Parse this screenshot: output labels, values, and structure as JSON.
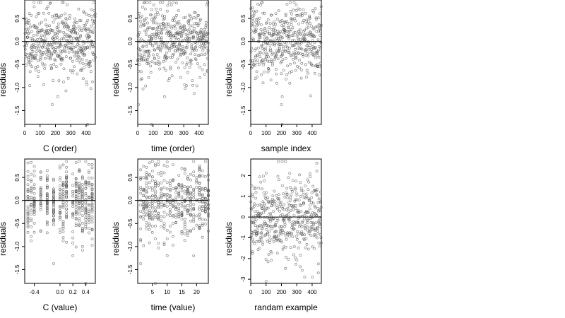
{
  "chart_data": [
    {
      "type": "scatter",
      "xlabel": "C (order)",
      "ylabel": "residuals",
      "xlim": [
        0,
        460
      ],
      "ylim": [
        -1.8,
        0.9
      ],
      "xticks": [
        0,
        100,
        200,
        300,
        400
      ],
      "xtick_labels": [
        "0",
        "100",
        "200",
        "300",
        "400"
      ],
      "yticks": [
        -1.5,
        -1.0,
        -0.5,
        0.0,
        0.5
      ],
      "ytick_labels": [
        "-1.5",
        "-1.0",
        "-0.5",
        "0.0",
        "0.5"
      ],
      "reference_line_y": 0,
      "point_style": "open circle",
      "n_points": 460,
      "x_pattern": "index",
      "y_spread": 0.38,
      "outliers": [
        [
          410,
          -1.8
        ],
        [
          180,
          -1.37
        ],
        [
          215,
          -1.2
        ]
      ],
      "seed": 11
    },
    {
      "type": "scatter",
      "xlabel": "time (order)",
      "ylabel": "residuals",
      "xlim": [
        0,
        460
      ],
      "ylim": [
        -1.8,
        0.9
      ],
      "xticks": [
        0,
        100,
        200,
        300,
        400
      ],
      "xtick_labels": [
        "0",
        "100",
        "200",
        "300",
        "400"
      ],
      "yticks": [
        -1.5,
        -1.0,
        -0.5,
        0.0,
        0.5
      ],
      "ytick_labels": [
        "-1.5",
        "-1.0",
        "-0.5",
        "0.0",
        "0.5"
      ],
      "reference_line_y": 0,
      "point_style": "open circle",
      "n_points": 460,
      "x_pattern": "index",
      "y_spread": 0.38,
      "outliers": [
        [
          90,
          -1.8
        ],
        [
          5,
          -1.37
        ],
        [
          175,
          -1.2
        ]
      ],
      "seed": 23
    },
    {
      "type": "scatter",
      "xlabel": "sample index",
      "ylabel": "residuals",
      "xlim": [
        0,
        460
      ],
      "ylim": [
        -1.8,
        0.9
      ],
      "xticks": [
        0,
        100,
        200,
        300,
        400
      ],
      "xtick_labels": [
        "0",
        "100",
        "200",
        "300",
        "400"
      ],
      "yticks": [
        -1.5,
        -1.0,
        -0.5,
        0.0,
        0.5
      ],
      "ytick_labels": [
        "-1.5",
        "-1.0",
        "-0.5",
        "0.0",
        "0.5"
      ],
      "reference_line_y": 0,
      "point_style": "open circle",
      "n_points": 460,
      "x_pattern": "index",
      "y_spread": 0.38,
      "outliers": [
        [
          205,
          -1.8
        ],
        [
          200,
          -1.37
        ],
        [
          205,
          -1.2
        ]
      ],
      "seed": 37
    },
    {
      "type": "scatter",
      "xlabel": "C (value)",
      "ylabel": "residuals",
      "xlim": [
        -0.55,
        0.55
      ],
      "ylim": [
        -1.8,
        0.9
      ],
      "xticks": [
        -0.4,
        0.0,
        0.2,
        0.4
      ],
      "xtick_labels": [
        "-0.4",
        "0.0",
        "0.2",
        "0.4"
      ],
      "yticks": [
        -1.5,
        -1.0,
        -0.5,
        0.0,
        0.5
      ],
      "ytick_labels": [
        "-1.5",
        "-1.0",
        "-0.5",
        "0.0",
        "0.5"
      ],
      "reference_line_y": 0,
      "point_style": "open circle",
      "n_points": 460,
      "x_pattern": "levels",
      "x_levels": [
        -0.5,
        -0.45,
        -0.4,
        -0.3,
        -0.2,
        -0.1,
        0.0,
        0.05,
        0.1,
        0.2,
        0.25,
        0.3,
        0.35,
        0.4,
        0.45,
        0.5
      ],
      "y_spread": 0.38,
      "outliers": [
        [
          0.4,
          -1.8
        ],
        [
          -0.1,
          -1.37
        ],
        [
          0.2,
          -1.2
        ]
      ],
      "seed": 53
    },
    {
      "type": "scatter",
      "xlabel": "time (value)",
      "ylabel": "residuals",
      "xlim": [
        0,
        24
      ],
      "ylim": [
        -1.8,
        0.9
      ],
      "xticks": [
        5,
        10,
        15,
        20
      ],
      "xtick_labels": [
        "5",
        "10",
        "15",
        "20"
      ],
      "yticks": [
        -1.5,
        -1.0,
        -0.5,
        0.0,
        0.5
      ],
      "ytick_labels": [
        "-1.5",
        "-1.0",
        "-0.5",
        "0.0",
        "0.5"
      ],
      "reference_line_y": 0,
      "point_style": "open circle",
      "n_points": 460,
      "x_pattern": "levels",
      "x_levels": [
        1,
        2,
        3,
        4,
        5,
        6,
        7,
        8,
        9,
        10,
        11,
        12,
        13,
        14,
        15,
        16,
        17,
        18,
        19,
        20,
        21,
        22,
        23,
        24
      ],
      "y_spread": 0.38,
      "outliers": [
        [
          6,
          -1.8
        ],
        [
          1,
          -1.37
        ],
        [
          10,
          -1.2
        ]
      ],
      "seed": 71
    },
    {
      "type": "scatter",
      "xlabel": "randam example",
      "ylabel": "residuals",
      "xlim": [
        0,
        460
      ],
      "ylim": [
        -3.2,
        2.8
      ],
      "xticks": [
        0,
        100,
        200,
        300,
        400
      ],
      "xtick_labels": [
        "0",
        "100",
        "200",
        "300",
        "400"
      ],
      "yticks": [
        -3,
        -2,
        -1,
        0,
        1,
        2
      ],
      "ytick_labels": [
        "-3",
        "-2",
        "-1",
        "0",
        "1",
        "2"
      ],
      "reference_line_y": 0,
      "point_style": "open circle",
      "n_points": 460,
      "x_pattern": "index",
      "y_spread": 1.0,
      "outliers": [
        [
          100,
          -3.1
        ],
        [
          440,
          -2.7
        ],
        [
          430,
          2.6
        ]
      ],
      "seed": 89
    }
  ]
}
